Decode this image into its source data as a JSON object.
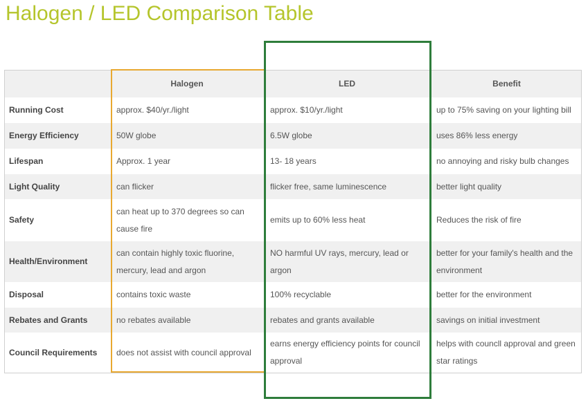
{
  "title": "Halogen / LED Comparison Table",
  "headers": [
    "",
    "Halogen",
    "LED",
    "Benefit"
  ],
  "rows": [
    {
      "label": "Running Cost",
      "halogen": "approx. $40/yr./light",
      "led": "approx. $10/yr./light",
      "benefit": "up to 75% saving on your lighting bill"
    },
    {
      "label": "Energy Efficiency",
      "halogen": "50W globe",
      "led": "6.5W globe",
      "benefit": "uses 86% less energy"
    },
    {
      "label": "Lifespan",
      "halogen": "Approx. 1 year",
      "led": "13- 18 years",
      "benefit": "no annoying and risky bulb changes"
    },
    {
      "label": "Light Quality",
      "halogen": "can flicker",
      "led": "flicker free, same luminescence",
      "benefit": "better light quality"
    },
    {
      "label": "Safety",
      "halogen": "can heat up to 370 degrees so can cause fire",
      "led": "emits up to 60% less heat",
      "benefit": "Reduces the risk of fire"
    },
    {
      "label": "Health/Environment",
      "halogen": "can contain highly toxic fluorine, mercury, lead and argon",
      "led": "NO harmful UV rays, mercury, lead or argon",
      "benefit": "better for your family's health and the environment"
    },
    {
      "label": "Disposal",
      "halogen": "contains toxic waste",
      "led": "100% recyclable",
      "benefit": "better for the environment"
    },
    {
      "label": "Rebates and Grants",
      "halogen": "no rebates available",
      "led": "rebates and grants available",
      "benefit": "savings on initial investment"
    },
    {
      "label": "Council Requirements",
      "halogen": "does not assist with council approval",
      "led": "earns energy efficiency points for council approval",
      "benefit": "helps with councll approval and green star ratings"
    }
  ],
  "colors": {
    "title": "#b5c52c",
    "halogen_outline": "#e8a830",
    "led_outline": "#2e7d3b",
    "row_alt": "#f0f0f0"
  }
}
